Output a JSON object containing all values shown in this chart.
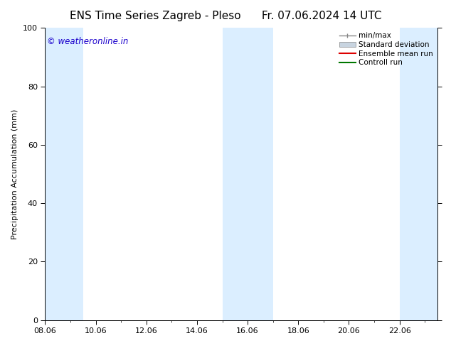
{
  "title_left": "ENS Time Series Zagreb - Pleso",
  "title_right": "Fr. 07.06.2024 14 UTC",
  "ylabel": "Precipitation Accumulation (mm)",
  "ylim": [
    0,
    100
  ],
  "yticks": [
    0,
    20,
    40,
    60,
    80,
    100
  ],
  "xlim": [
    8.0,
    23.5
  ],
  "xtick_positions": [
    8,
    10,
    12,
    14,
    16,
    18,
    20,
    22
  ],
  "xtick_labels": [
    "08.06",
    "10.06",
    "12.06",
    "14.06",
    "16.06",
    "18.06",
    "20.06",
    "22.06"
  ],
  "watermark": "© weatheronline.in",
  "watermark_color": "#1a00cc",
  "background_color": "#ffffff",
  "plot_bg_color": "#ffffff",
  "shaded_bands": [
    {
      "x_start": 8.0,
      "x_end": 9.5
    },
    {
      "x_start": 15.0,
      "x_end": 17.0
    },
    {
      "x_start": 22.0,
      "x_end": 23.5
    }
  ],
  "band_color": "#dbeeff",
  "title_fontsize": 11,
  "label_fontsize": 8,
  "tick_fontsize": 8,
  "legend_fontsize": 7.5,
  "watermark_fontsize": 8.5
}
